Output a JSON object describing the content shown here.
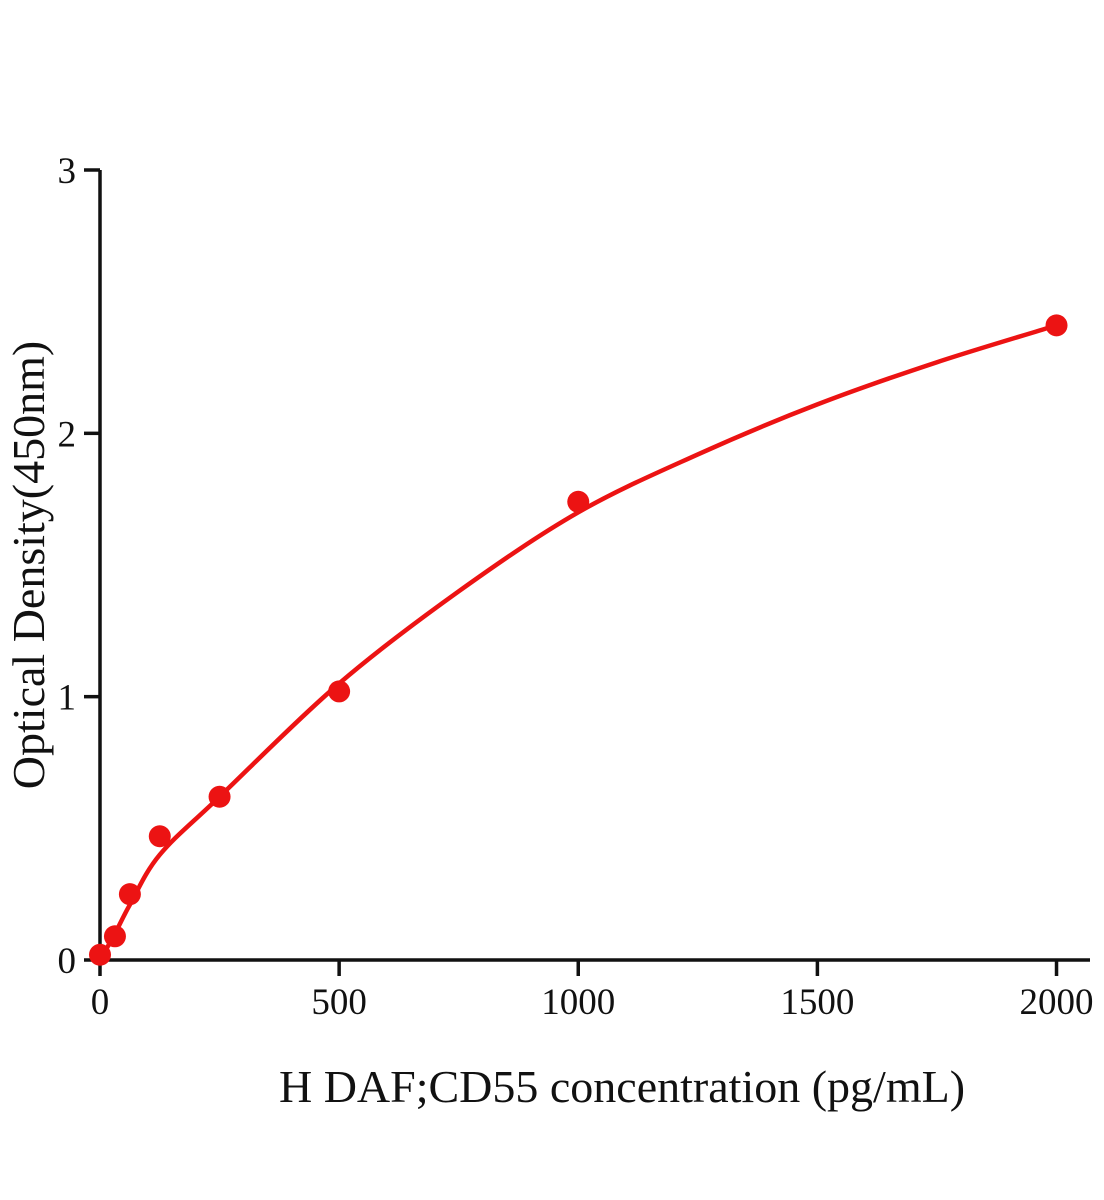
{
  "chart_data": {
    "type": "scatter",
    "title": "",
    "xlabel": "H DAF;CD55 concentration (pg/mL)",
    "ylabel": "Optical Density(450nm)",
    "xlim": [
      0,
      2070
    ],
    "ylim": [
      0,
      3
    ],
    "x_ticks": [
      0,
      500,
      1000,
      1500,
      2000
    ],
    "y_ticks": [
      0,
      1,
      2,
      3
    ],
    "grid": false,
    "legend": "none",
    "points": [
      {
        "x": 0,
        "y": 0.02
      },
      {
        "x": 31.25,
        "y": 0.09
      },
      {
        "x": 62.5,
        "y": 0.25
      },
      {
        "x": 125,
        "y": 0.47
      },
      {
        "x": 250,
        "y": 0.62
      },
      {
        "x": 500,
        "y": 1.02
      },
      {
        "x": 1000,
        "y": 1.74
      },
      {
        "x": 2000,
        "y": 2.41
      }
    ],
    "fit_curve_points": [
      [
        0,
        0.0
      ],
      [
        31.25,
        0.1
      ],
      [
        62.5,
        0.21
      ],
      [
        125,
        0.4
      ],
      [
        250,
        0.62
      ],
      [
        500,
        1.05
      ],
      [
        750,
        1.4
      ],
      [
        1000,
        1.7
      ],
      [
        1250,
        1.92
      ],
      [
        1500,
        2.11
      ],
      [
        1750,
        2.27
      ],
      [
        2000,
        2.41
      ]
    ],
    "point_color": "#ec1313",
    "curve_color": "#ec1313",
    "axis_color": "#111111"
  }
}
